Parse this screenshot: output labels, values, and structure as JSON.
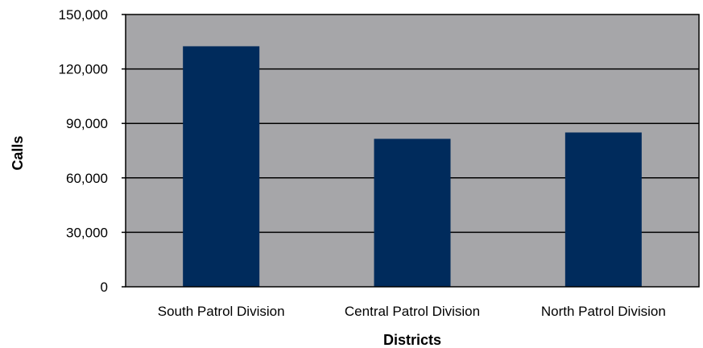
{
  "chart_data": {
    "type": "bar",
    "categories": [
      "South Patrol Division",
      "Central Patrol Division",
      "North Patrol Division"
    ],
    "values": [
      132500,
      81500,
      85000
    ],
    "xlabel": "Districts",
    "ylabel": "Calls",
    "ylim": [
      0,
      150000
    ],
    "yticks": [
      0,
      30000,
      60000,
      90000,
      120000,
      150000
    ],
    "ytick_labels": [
      "0",
      "30,000",
      "60,000",
      "90,000",
      "120,000",
      "150,000"
    ],
    "grid": true,
    "legend": "none",
    "colors": {
      "bar": "#002b5c",
      "plot_background": "#a6a6a9",
      "gridline": "#000000",
      "border": "#000000"
    }
  }
}
